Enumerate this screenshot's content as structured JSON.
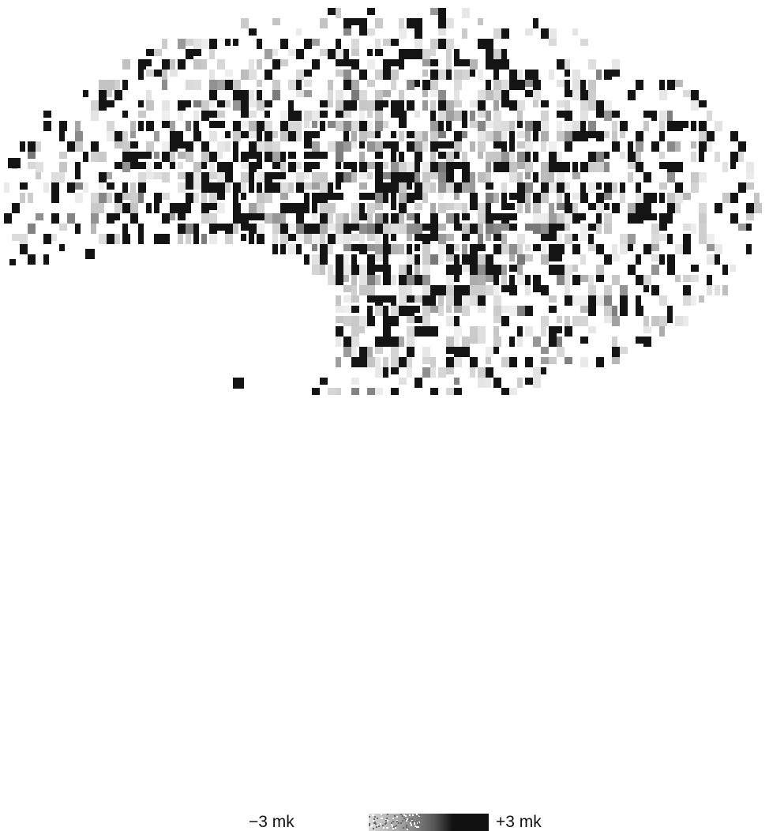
{
  "legend": {
    "min_label": "−3 mk",
    "max_label": "+3 mk",
    "colors": {
      "low": "#ffffff",
      "mid": "#9a9a9a",
      "high": "#111111"
    }
  }
}
